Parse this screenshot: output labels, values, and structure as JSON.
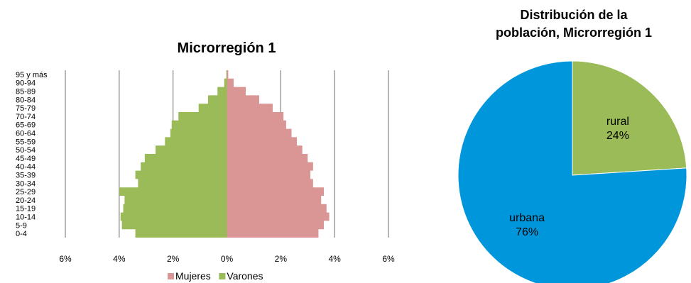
{
  "chart_data": [
    {
      "type": "bar",
      "orientation": "horizontal",
      "title": "Microrregión 1",
      "categories": [
        "0-4",
        "5-9",
        "10-14",
        "15-19",
        "20-24",
        "25-29",
        "30-34",
        "35-39",
        "40-44",
        "45-49",
        "50-54",
        "55-59",
        "60-64",
        "65-69",
        "70-74",
        "75-79",
        "80-84",
        "85-89",
        "90-94",
        "95 y más"
      ],
      "series": [
        {
          "name": "Mujeres",
          "color": "#d99694",
          "values": [
            3.4,
            3.6,
            3.8,
            3.7,
            3.5,
            3.6,
            3.2,
            3.1,
            3.2,
            3.0,
            2.8,
            2.6,
            2.4,
            2.2,
            2.1,
            1.7,
            1.2,
            0.7,
            0.25,
            0.05
          ]
        },
        {
          "name": "Varones",
          "color": "#9bbb59",
          "values": [
            -3.4,
            -3.9,
            -3.95,
            -3.85,
            -3.8,
            -4.0,
            -3.3,
            -3.4,
            -3.2,
            -3.05,
            -2.65,
            -2.3,
            -2.1,
            -2.05,
            -1.8,
            -1.05,
            -0.7,
            -0.35,
            -0.1,
            -0.02
          ]
        }
      ],
      "xlim": [
        -6,
        6
      ],
      "xticks": [
        -6,
        -4,
        -2,
        0,
        2,
        4,
        6
      ],
      "xtick_labels": [
        "6%",
        "4%",
        "2%",
        "0%",
        "2%",
        "4%",
        "6%"
      ],
      "grid": true,
      "legend": "bottom"
    },
    {
      "type": "pie",
      "title_lines": [
        "Distribución de la",
        "población, Microrregión 1"
      ],
      "slices": [
        {
          "label": "rural",
          "pct_label": "24%",
          "value": 24,
          "color": "#9bbb59"
        },
        {
          "label": "urbana",
          "pct_label": "76%",
          "value": 76,
          "color": "#0096db"
        }
      ]
    }
  ]
}
